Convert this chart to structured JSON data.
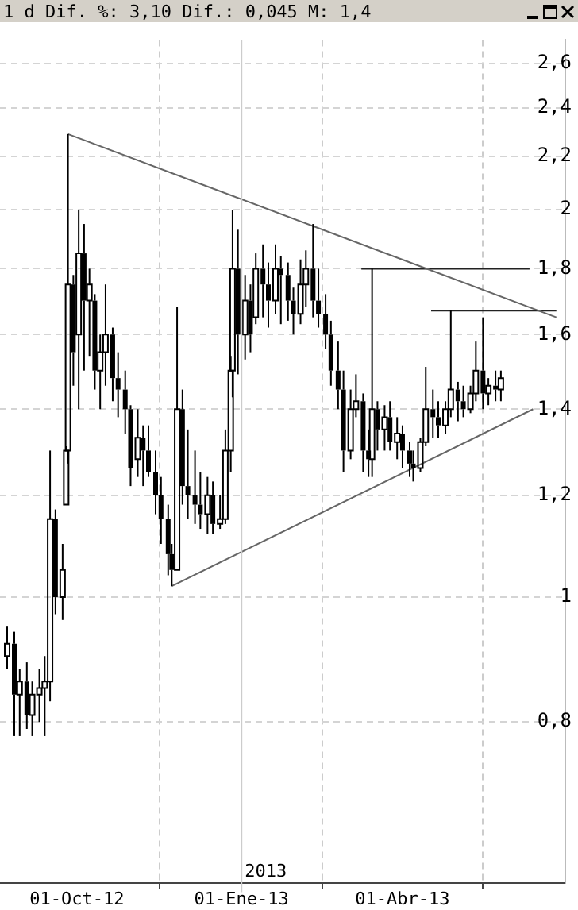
{
  "chart_data": {
    "type": "candlestick",
    "title": "1 d Dif. %: 3,10 Dif.: 0,045 M: 1,4",
    "color": "#000000",
    "x": [
      "2012-08-23",
      "2012-08-27",
      "2012-08-30",
      "2012-09-03",
      "2012-09-06",
      "2012-09-10",
      "2012-09-13",
      "2012-09-16",
      "2012-09-19",
      "2012-09-23",
      "2012-09-25",
      "2012-09-26",
      "2012-09-29",
      "2012-10-02",
      "2012-10-05",
      "2012-10-08",
      "2012-10-11",
      "2012-10-14",
      "2012-10-17",
      "2012-10-21",
      "2012-10-24",
      "2012-10-28",
      "2012-10-31",
      "2012-11-04",
      "2012-11-07",
      "2012-11-10",
      "2012-11-14",
      "2012-11-17",
      "2012-11-21",
      "2012-11-23",
      "2012-11-26",
      "2012-11-29",
      "2012-12-02",
      "2012-12-06",
      "2012-12-09",
      "2012-12-13",
      "2012-12-16",
      "2012-12-20",
      "2012-12-23",
      "2012-12-26",
      "2012-12-27",
      "2012-12-30",
      "2013-01-03",
      "2013-01-06",
      "2013-01-09",
      "2013-01-13",
      "2013-01-16",
      "2013-01-20",
      "2013-01-23",
      "2013-01-27",
      "2013-01-30",
      "2013-02-03",
      "2013-02-06",
      "2013-02-10",
      "2013-02-13",
      "2013-02-17",
      "2013-02-20",
      "2013-02-24",
      "2013-02-27",
      "2013-03-03",
      "2013-03-06",
      "2013-03-10",
      "2013-03-13",
      "2013-03-15",
      "2013-03-18",
      "2013-03-22",
      "2013-03-25",
      "2013-03-29",
      "2013-04-01",
      "2013-04-05",
      "2013-04-07",
      "2013-04-11",
      "2013-04-14",
      "2013-04-18",
      "2013-04-21",
      "2013-04-25",
      "2013-04-28",
      "2013-05-02",
      "2013-05-05",
      "2013-05-09",
      "2013-05-12",
      "2013-05-16",
      "2013-05-19",
      "2013-05-23",
      "2013-05-26"
    ],
    "ohlc": [
      [
        0.9,
        0.95,
        0.88,
        0.92
      ],
      [
        0.92,
        0.94,
        0.78,
        0.84
      ],
      [
        0.84,
        0.88,
        0.78,
        0.86
      ],
      [
        0.86,
        0.89,
        0.79,
        0.81
      ],
      [
        0.81,
        0.86,
        0.78,
        0.84
      ],
      [
        0.84,
        0.88,
        0.8,
        0.85
      ],
      [
        0.85,
        0.9,
        0.78,
        0.86
      ],
      [
        0.86,
        1.3,
        0.83,
        1.15
      ],
      [
        1.15,
        1.17,
        0.97,
        1.0
      ],
      [
        1.0,
        1.1,
        0.96,
        1.05
      ],
      [
        1.18,
        1.31,
        1.18,
        1.3
      ],
      [
        1.3,
        2.29,
        1.27,
        1.75
      ],
      [
        1.75,
        1.78,
        1.46,
        1.55
      ],
      [
        1.6,
        2.0,
        1.4,
        1.85
      ],
      [
        1.85,
        1.95,
        1.5,
        1.7
      ],
      [
        1.7,
        1.8,
        1.54,
        1.75
      ],
      [
        1.7,
        1.72,
        1.45,
        1.5
      ],
      [
        1.5,
        1.6,
        1.4,
        1.55
      ],
      [
        1.55,
        1.75,
        1.46,
        1.6
      ],
      [
        1.6,
        1.62,
        1.42,
        1.48
      ],
      [
        1.48,
        1.55,
        1.38,
        1.45
      ],
      [
        1.45,
        1.5,
        1.34,
        1.4
      ],
      [
        1.4,
        1.41,
        1.22,
        1.26
      ],
      [
        1.28,
        1.4,
        1.24,
        1.33
      ],
      [
        1.33,
        1.36,
        1.22,
        1.3
      ],
      [
        1.3,
        1.36,
        1.24,
        1.25
      ],
      [
        1.25,
        1.3,
        1.16,
        1.2
      ],
      [
        1.2,
        1.24,
        1.1,
        1.15
      ],
      [
        1.15,
        1.18,
        1.04,
        1.08
      ],
      [
        1.08,
        1.1,
        1.02,
        1.05
      ],
      [
        1.05,
        1.68,
        1.05,
        1.4
      ],
      [
        1.4,
        1.45,
        1.18,
        1.22
      ],
      [
        1.22,
        1.35,
        1.15,
        1.2
      ],
      [
        1.2,
        1.3,
        1.14,
        1.18
      ],
      [
        1.18,
        1.25,
        1.13,
        1.16
      ],
      [
        1.16,
        1.24,
        1.12,
        1.2
      ],
      [
        1.2,
        1.23,
        1.12,
        1.14
      ],
      [
        1.14,
        1.2,
        1.13,
        1.15
      ],
      [
        1.15,
        1.35,
        1.14,
        1.3
      ],
      [
        1.3,
        1.54,
        1.25,
        1.5
      ],
      [
        1.5,
        2.0,
        1.43,
        1.8
      ],
      [
        1.8,
        1.93,
        1.49,
        1.6
      ],
      [
        1.6,
        1.78,
        1.53,
        1.7
      ],
      [
        1.7,
        1.75,
        1.55,
        1.6
      ],
      [
        1.65,
        1.85,
        1.63,
        1.8
      ],
      [
        1.8,
        1.88,
        1.65,
        1.75
      ],
      [
        1.75,
        1.82,
        1.62,
        1.7
      ],
      [
        1.7,
        1.88,
        1.66,
        1.8
      ],
      [
        1.8,
        1.84,
        1.63,
        1.78
      ],
      [
        1.78,
        1.82,
        1.64,
        1.7
      ],
      [
        1.7,
        1.74,
        1.6,
        1.66
      ],
      [
        1.66,
        1.83,
        1.63,
        1.75
      ],
      [
        1.75,
        1.86,
        1.68,
        1.8
      ],
      [
        1.8,
        1.95,
        1.65,
        1.7
      ],
      [
        1.7,
        1.8,
        1.62,
        1.66
      ],
      [
        1.66,
        1.72,
        1.56,
        1.6
      ],
      [
        1.6,
        1.64,
        1.46,
        1.5
      ],
      [
        1.5,
        1.58,
        1.4,
        1.45
      ],
      [
        1.45,
        1.5,
        1.25,
        1.3
      ],
      [
        1.3,
        1.45,
        1.28,
        1.4
      ],
      [
        1.4,
        1.49,
        1.38,
        1.42
      ],
      [
        1.42,
        1.44,
        1.25,
        1.3
      ],
      [
        1.3,
        1.35,
        1.24,
        1.28
      ],
      [
        1.28,
        1.8,
        1.24,
        1.4
      ],
      [
        1.4,
        1.42,
        1.3,
        1.35
      ],
      [
        1.35,
        1.41,
        1.3,
        1.38
      ],
      [
        1.38,
        1.42,
        1.3,
        1.32
      ],
      [
        1.32,
        1.38,
        1.28,
        1.34
      ],
      [
        1.34,
        1.36,
        1.26,
        1.3
      ],
      [
        1.3,
        1.32,
        1.24,
        1.27
      ],
      [
        1.27,
        1.3,
        1.23,
        1.26
      ],
      [
        1.26,
        1.33,
        1.25,
        1.32
      ],
      [
        1.32,
        1.51,
        1.31,
        1.4
      ],
      [
        1.4,
        1.45,
        1.33,
        1.38
      ],
      [
        1.38,
        1.42,
        1.33,
        1.36
      ],
      [
        1.36,
        1.42,
        1.34,
        1.4
      ],
      [
        1.4,
        1.67,
        1.38,
        1.45
      ],
      [
        1.45,
        1.47,
        1.37,
        1.42
      ],
      [
        1.42,
        1.46,
        1.38,
        1.4
      ],
      [
        1.4,
        1.46,
        1.39,
        1.44
      ],
      [
        1.44,
        1.58,
        1.42,
        1.5
      ],
      [
        1.5,
        1.65,
        1.4,
        1.44
      ],
      [
        1.44,
        1.48,
        1.41,
        1.46
      ],
      [
        1.46,
        1.5,
        1.42,
        1.45
      ],
      [
        1.45,
        1.5,
        1.42,
        1.48
      ]
    ],
    "series": [
      {
        "type": "line",
        "color": "#666666",
        "x": [
          "2012-09-26",
          "2013-06-26"
        ],
        "values": [
          2.29,
          1.65
        ]
      },
      {
        "type": "line",
        "color": "#666666",
        "x": [
          "2012-11-23",
          "2013-06-13"
        ],
        "values": [
          1.02,
          1.4
        ]
      },
      {
        "type": "line",
        "color": "#222222",
        "x": [
          "2013-03-09",
          "2013-06-11"
        ],
        "values": [
          1.8,
          1.8
        ]
      },
      {
        "type": "line",
        "color": "#222222",
        "x": [
          "2013-04-17",
          "2013-06-26"
        ],
        "values": [
          1.67,
          1.67
        ]
      }
    ],
    "xlim": [
      "2012-08-19",
      "2013-07-01"
    ],
    "xticks": [
      {
        "value": "2012-10-01",
        "label": "01-Oct-12"
      },
      {
        "value": "2013-01-01",
        "label": "01-Ene-13"
      },
      {
        "value": "2013-04-01",
        "label": "01-Abr-13"
      }
    ],
    "ylim": [
      0.6,
      2.71
    ],
    "log": "y",
    "yticks": [
      {
        "value": 0.8,
        "label": "0,8"
      },
      1,
      {
        "value": 1.2,
        "label": "1,2"
      },
      {
        "value": 1.4,
        "label": "1,4"
      },
      {
        "value": 1.6,
        "label": "1,6"
      },
      {
        "value": 1.8,
        "label": "1,8"
      },
      2,
      {
        "value": 2.2,
        "label": "2,2"
      },
      {
        "value": 2.4,
        "label": "2,4"
      },
      {
        "value": 2.6,
        "label": "2,6"
      }
    ],
    "ref_lines": [
      {
        "axis": "x",
        "value": "2013-01-01",
        "label": "2013",
        "color": "#cccccc"
      }
    ],
    "grid": true,
    "legend": false,
    "marker": "none"
  }
}
